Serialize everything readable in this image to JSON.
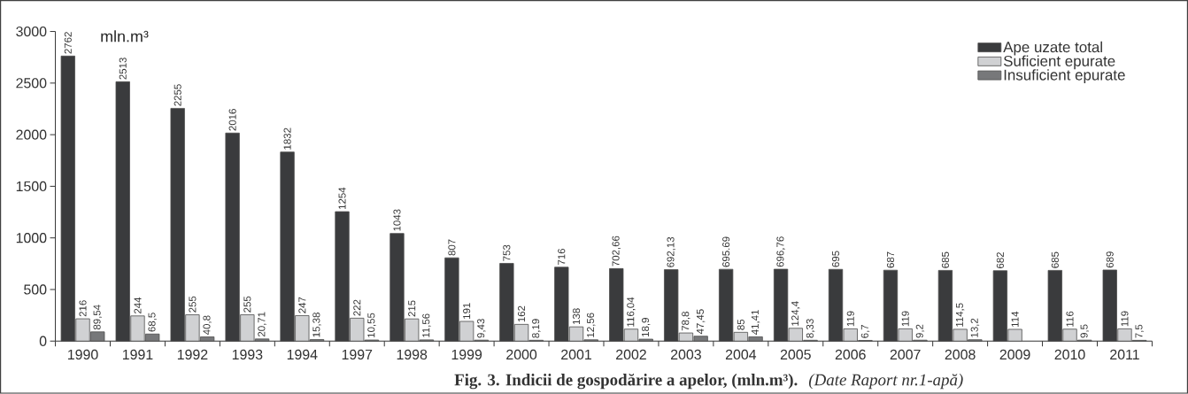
{
  "chart_data": {
    "type": "bar",
    "title": "Fig. 3.  Indicii de gospodărire a apelor, (mln.m³).",
    "ylabel": "mln.m³",
    "annotations": [
      "*(Date Raport nr.1-apă)*"
    ],
    "categories": [
      "1990",
      "1991",
      "1992",
      "1993",
      "1994",
      "1997",
      "1998",
      "1999",
      "2000",
      "2001",
      "2002",
      "2003",
      "2004",
      "2005",
      "2006",
      "2007",
      "2008",
      "2009",
      "2010",
      "2011"
    ],
    "series": [
      {
        "name": "Ape uzate total",
        "color": "#3a3b3d",
        "values": [
          2762,
          2513,
          2255,
          2016,
          1832,
          1254,
          1043,
          807,
          753,
          716,
          702.66,
          692.13,
          695.69,
          696.76,
          695,
          687,
          685,
          682,
          685,
          689
        ],
        "value_labels": [
          "2762",
          "2513",
          "2255",
          "2016",
          "1832",
          "1254",
          "1043",
          "807",
          "753",
          "716",
          "702,66",
          "692,13",
          "695.69",
          "696,76",
          "695",
          "687",
          "685",
          "682",
          "685",
          "689"
        ]
      },
      {
        "name": "Suficient epurate",
        "color": "#d0d1d3",
        "values": [
          216,
          244,
          255,
          255,
          247,
          222,
          215,
          191,
          162,
          138,
          116.04,
          78.8,
          85,
          124.4,
          119,
          119,
          114.5,
          114,
          116,
          119
        ],
        "value_labels": [
          "216",
          "244",
          "255",
          "255",
          "247",
          "222",
          "215",
          "191",
          "162",
          "138",
          "116,04",
          "78,8",
          "85",
          "124,4",
          "119",
          "119",
          "114,5",
          "114",
          "116",
          "119"
        ]
      },
      {
        "name": "Insuficient epurate",
        "color": "#77787a",
        "values": [
          89.54,
          68.5,
          40.8,
          20.71,
          15.38,
          10.55,
          11.56,
          9.43,
          8.19,
          12.56,
          18.9,
          47.45,
          41.41,
          8.33,
          6.7,
          9.2,
          13.2,
          null,
          9.5,
          7.5
        ],
        "value_labels": [
          "89,54",
          "68,5",
          "40,8",
          "20,71",
          "15,38",
          "10,55",
          "11,56",
          "9,43",
          "8,19",
          "12,56",
          "18,9",
          "47,45",
          "41,41",
          "8,33",
          "6,7",
          "9,2",
          "13,2",
          null,
          "9,5",
          "7,5"
        ]
      }
    ],
    "ylim": [
      0,
      3000
    ],
    "yticks": [
      0,
      500,
      1000,
      1500,
      2000,
      2500,
      3000
    ],
    "legend": "top right",
    "grid": false
  }
}
